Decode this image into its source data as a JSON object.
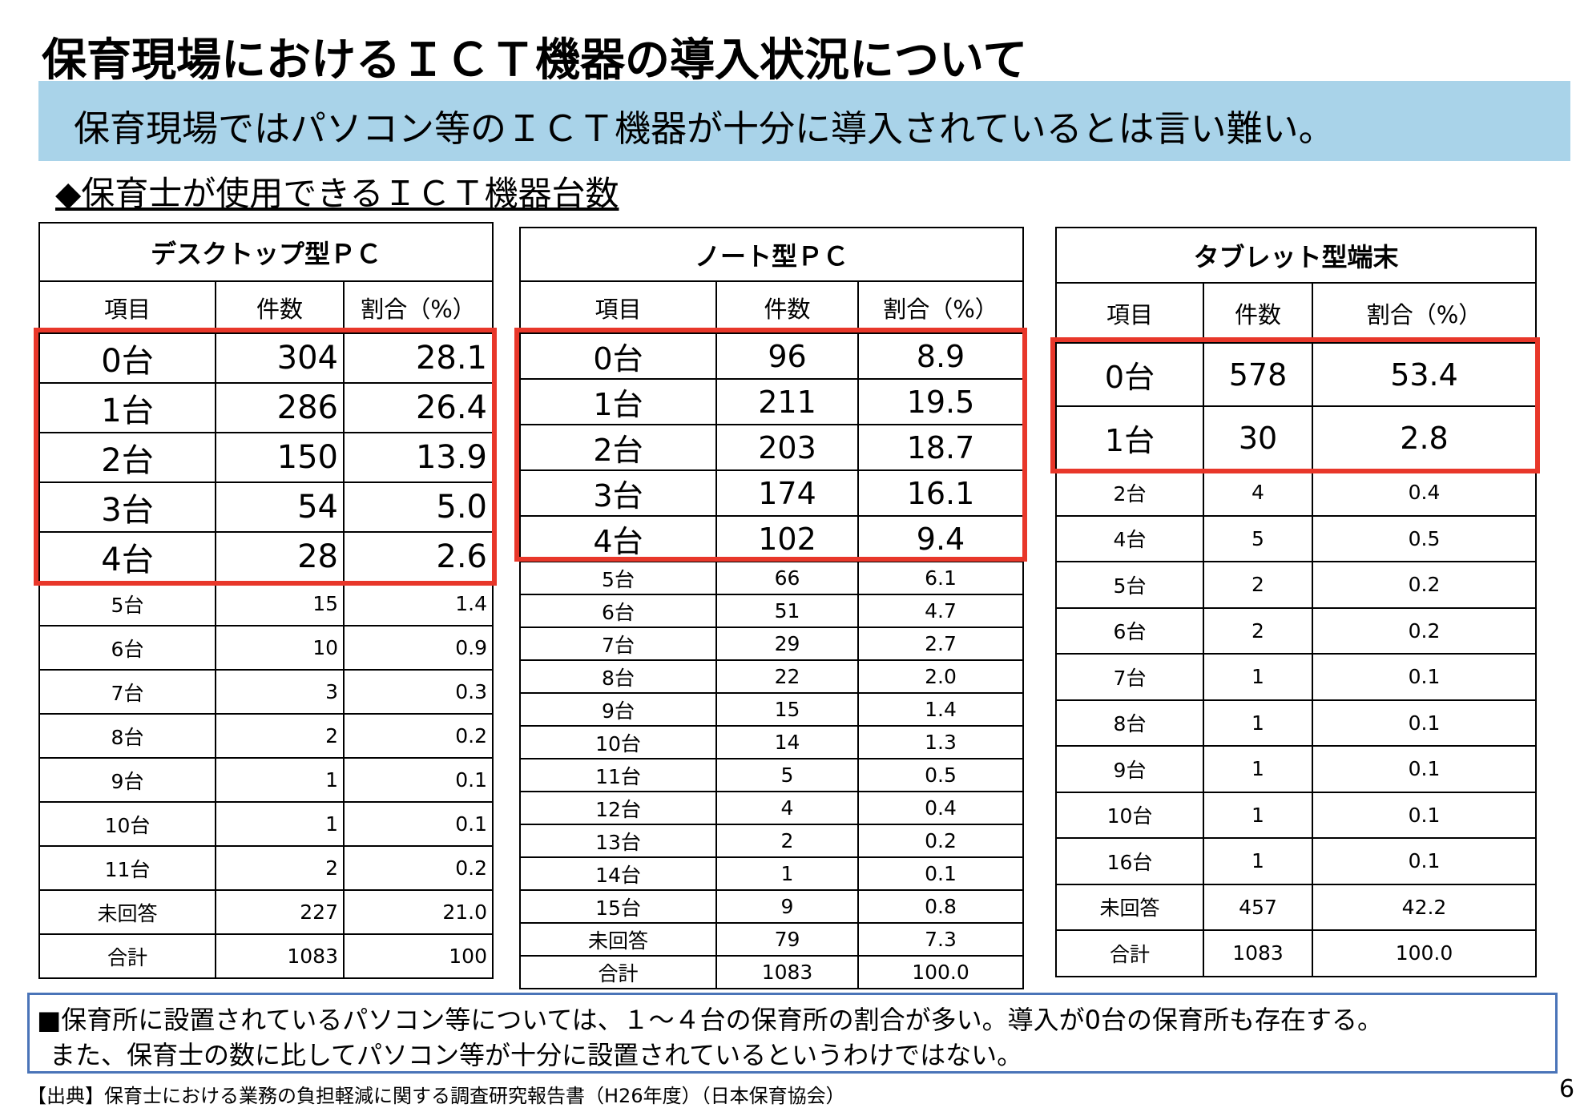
{
  "title": "保育現場におけるＩＣＴ機器の導入状況について",
  "banner": "保育現場ではパソコン等のＩＣＴ機器が十分に導入されているとは言い難い。",
  "subtitle": "◆保育士が使用できるＩＣＴ機器台数",
  "tables": [
    {
      "title": "デスクトップ型ＰＣ",
      "headers": [
        "項目",
        "件数",
        "割合（%）"
      ],
      "rows": [
        [
          "0台",
          "304",
          "28.1"
        ],
        [
          "1台",
          "286",
          "26.4"
        ],
        [
          "2台",
          "150",
          "13.9"
        ],
        [
          "3台",
          "54",
          "5.0"
        ],
        [
          "4台",
          "28",
          "2.6"
        ],
        [
          "5台",
          "15",
          "1.4"
        ],
        [
          "6台",
          "10",
          "0.9"
        ],
        [
          "7台",
          "3",
          "0.3"
        ],
        [
          "8台",
          "2",
          "0.2"
        ],
        [
          "9台",
          "1",
          "0.1"
        ],
        [
          "10台",
          "1",
          "0.1"
        ],
        [
          "11台",
          "2",
          "0.2"
        ],
        [
          "未回答",
          "227",
          "21.0"
        ],
        [
          "合計",
          "1083",
          "100"
        ]
      ]
    },
    {
      "title": "ノート型ＰＣ",
      "headers": [
        "項目",
        "件数",
        "割合（%）"
      ],
      "rows": [
        [
          "0台",
          "96",
          "8.9"
        ],
        [
          "1台",
          "211",
          "19.5"
        ],
        [
          "2台",
          "203",
          "18.7"
        ],
        [
          "3台",
          "174",
          "16.1"
        ],
        [
          "4台",
          "102",
          "9.4"
        ],
        [
          "5台",
          "66",
          "6.1"
        ],
        [
          "6台",
          "51",
          "4.7"
        ],
        [
          "7台",
          "29",
          "2.7"
        ],
        [
          "8台",
          "22",
          "2.0"
        ],
        [
          "9台",
          "15",
          "1.4"
        ],
        [
          "10台",
          "14",
          "1.3"
        ],
        [
          "11台",
          "5",
          "0.5"
        ],
        [
          "12台",
          "4",
          "0.4"
        ],
        [
          "13台",
          "2",
          "0.2"
        ],
        [
          "14台",
          "1",
          "0.1"
        ],
        [
          "15台",
          "9",
          "0.8"
        ],
        [
          "未回答",
          "79",
          "7.3"
        ],
        [
          "合計",
          "1083",
          "100.0"
        ]
      ]
    },
    {
      "title": "タブレット型端末",
      "headers": [
        "項目",
        "件数",
        "割合（%）"
      ],
      "rows": [
        [
          "0台",
          "578",
          "53.4"
        ],
        [
          "1台",
          "30",
          "2.8"
        ],
        [
          "2台",
          "4",
          "0.4"
        ],
        [
          "4台",
          "5",
          "0.5"
        ],
        [
          "5台",
          "2",
          "0.2"
        ],
        [
          "6台",
          "2",
          "0.2"
        ],
        [
          "7台",
          "1",
          "0.1"
        ],
        [
          "8台",
          "1",
          "0.1"
        ],
        [
          "9台",
          "1",
          "0.1"
        ],
        [
          "10台",
          "1",
          "0.1"
        ],
        [
          "16台",
          "1",
          "0.1"
        ],
        [
          "未回答",
          "457",
          "42.2"
        ],
        [
          "合計",
          "1083",
          "100.0"
        ]
      ]
    }
  ],
  "note": [
    "■保育所に設置されているパソコン等については、１～４台の保育所の割合が多い。導入が0台の保育所も存在する。",
    "また、保育士の数に比してパソコン等が十分に設置されているというわけではない。"
  ],
  "source": "【出典】保育士における業務の負担軽減に関する調査研究報告書（H26年度）（日本保育協会）",
  "page": "6"
}
